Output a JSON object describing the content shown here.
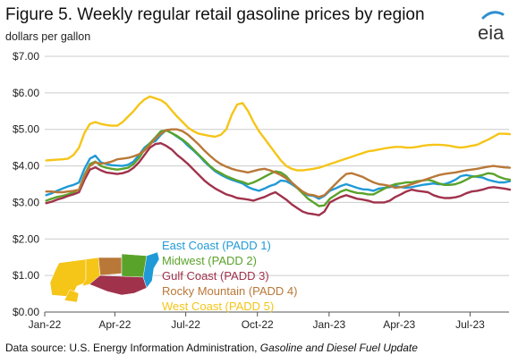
{
  "title": "Figure 5. Weekly regular retail gasoline prices by region",
  "units": "dollars per gallon",
  "source": {
    "prefix": "Data source: U.S. Energy Information Administration, ",
    "italic": "Gasoline and Diesel Fuel Update"
  },
  "logo": {
    "text": "eia",
    "accent": "#2f8fd0",
    "icon": "eia-logo-icon"
  },
  "chart_data": {
    "type": "line",
    "x_start": "2022-01-03",
    "x_step_days": 7,
    "x_tick_labels": [
      "Jan-22",
      "Apr-22",
      "Jul-22",
      "Oct-22",
      "Jan-23",
      "Apr-23",
      "Jul-23"
    ],
    "x_tick_dates": [
      "2022-01-01",
      "2022-04-01",
      "2022-07-01",
      "2022-10-01",
      "2023-01-01",
      "2023-04-01",
      "2023-07-01"
    ],
    "x_end_date": "2023-08-20",
    "ylim": [
      0,
      7
    ],
    "y_ticks": [
      "$0.00",
      "$1.00",
      "$2.00",
      "$3.00",
      "$4.00",
      "$5.00",
      "$6.00",
      "$7.00"
    ],
    "y_gridlines": true,
    "legend_position": "bottom-left",
    "series": [
      {
        "name": "East Coast (PADD 1)",
        "color": "#1f9ad6",
        "values": [
          3.2,
          3.25,
          3.32,
          3.38,
          3.44,
          3.48,
          3.55,
          3.92,
          4.2,
          4.28,
          4.1,
          4.05,
          4.02,
          4.01,
          4.0,
          4.03,
          4.12,
          4.3,
          4.5,
          4.62,
          4.68,
          4.85,
          4.98,
          4.9,
          4.8,
          4.7,
          4.55,
          4.42,
          4.28,
          4.12,
          3.98,
          3.85,
          3.76,
          3.68,
          3.62,
          3.57,
          3.52,
          3.42,
          3.36,
          3.32,
          3.38,
          3.45,
          3.5,
          3.6,
          3.58,
          3.5,
          3.4,
          3.28,
          3.2,
          3.18,
          3.1,
          3.18,
          3.32,
          3.38,
          3.45,
          3.5,
          3.45,
          3.4,
          3.36,
          3.35,
          3.32,
          3.38,
          3.4,
          3.42,
          3.45,
          3.42,
          3.4,
          3.42,
          3.45,
          3.48,
          3.5,
          3.52,
          3.5,
          3.5,
          3.55,
          3.62,
          3.72,
          3.75,
          3.72,
          3.7,
          3.68,
          3.62,
          3.58,
          3.55,
          3.55,
          3.58
        ]
      },
      {
        "name": "Midwest (PADD 2)",
        "color": "#5aa32b",
        "values": [
          3.05,
          3.1,
          3.15,
          3.18,
          3.22,
          3.28,
          3.35,
          3.75,
          4.05,
          4.12,
          4.0,
          3.95,
          3.92,
          3.9,
          3.92,
          3.95,
          4.05,
          4.22,
          4.45,
          4.62,
          4.78,
          4.95,
          4.97,
          4.9,
          4.82,
          4.72,
          4.6,
          4.45,
          4.3,
          4.15,
          4.0,
          3.88,
          3.8,
          3.72,
          3.66,
          3.6,
          3.56,
          3.5,
          3.55,
          3.62,
          3.7,
          3.78,
          3.85,
          3.82,
          3.72,
          3.55,
          3.4,
          3.25,
          3.1,
          3.0,
          2.9,
          2.92,
          3.1,
          3.2,
          3.3,
          3.35,
          3.3,
          3.26,
          3.25,
          3.22,
          3.22,
          3.3,
          3.38,
          3.45,
          3.5,
          3.52,
          3.55,
          3.55,
          3.58,
          3.6,
          3.62,
          3.58,
          3.52,
          3.48,
          3.48,
          3.5,
          3.55,
          3.62,
          3.7,
          3.72,
          3.75,
          3.8,
          3.78,
          3.7,
          3.65,
          3.62
        ]
      },
      {
        "name": "Gulf Coast (PADD 3)",
        "color": "#a0324c",
        "values": [
          2.98,
          3.02,
          3.08,
          3.12,
          3.18,
          3.22,
          3.28,
          3.62,
          3.9,
          3.96,
          3.88,
          3.82,
          3.8,
          3.78,
          3.8,
          3.85,
          3.95,
          4.1,
          4.3,
          4.5,
          4.6,
          4.62,
          4.55,
          4.45,
          4.3,
          4.18,
          4.05,
          3.9,
          3.75,
          3.6,
          3.48,
          3.38,
          3.3,
          3.22,
          3.18,
          3.12,
          3.1,
          3.08,
          3.05,
          3.1,
          3.15,
          3.22,
          3.28,
          3.18,
          3.08,
          2.95,
          2.85,
          2.75,
          2.7,
          2.68,
          2.65,
          2.75,
          3.0,
          3.08,
          3.15,
          3.2,
          3.15,
          3.1,
          3.08,
          3.05,
          3.0,
          3.0,
          3.0,
          3.05,
          3.15,
          3.22,
          3.3,
          3.35,
          3.32,
          3.3,
          3.28,
          3.2,
          3.15,
          3.12,
          3.12,
          3.14,
          3.18,
          3.25,
          3.3,
          3.32,
          3.35,
          3.4,
          3.42,
          3.4,
          3.38,
          3.35
        ]
      },
      {
        "name": "Rocky Mountain (PADD 4)",
        "color": "#b97838",
        "values": [
          3.3,
          3.3,
          3.28,
          3.28,
          3.3,
          3.32,
          3.35,
          3.72,
          4.0,
          4.1,
          4.06,
          4.08,
          4.12,
          4.18,
          4.2,
          4.22,
          4.26,
          4.32,
          4.42,
          4.58,
          4.75,
          4.88,
          4.98,
          5.0,
          5.0,
          4.95,
          4.85,
          4.72,
          4.58,
          4.42,
          4.28,
          4.15,
          4.05,
          3.98,
          3.92,
          3.88,
          3.85,
          3.82,
          3.86,
          3.9,
          3.92,
          3.88,
          3.82,
          3.75,
          3.66,
          3.55,
          3.42,
          3.3,
          3.22,
          3.2,
          3.15,
          3.2,
          3.35,
          3.5,
          3.65,
          3.78,
          3.8,
          3.75,
          3.7,
          3.62,
          3.55,
          3.5,
          3.48,
          3.45,
          3.4,
          3.42,
          3.45,
          3.5,
          3.55,
          3.6,
          3.65,
          3.7,
          3.75,
          3.78,
          3.8,
          3.82,
          3.85,
          3.88,
          3.9,
          3.92,
          3.95,
          3.98,
          4.0,
          3.98,
          3.96,
          3.95
        ]
      },
      {
        "name": "West Coast (PADD 5)",
        "color": "#f5c518",
        "values": [
          4.15,
          4.16,
          4.17,
          4.18,
          4.2,
          4.3,
          4.5,
          4.9,
          5.15,
          5.2,
          5.15,
          5.12,
          5.1,
          5.1,
          5.2,
          5.35,
          5.5,
          5.68,
          5.82,
          5.9,
          5.85,
          5.8,
          5.7,
          5.52,
          5.35,
          5.2,
          5.05,
          4.95,
          4.88,
          4.85,
          4.82,
          4.8,
          4.85,
          5.0,
          5.4,
          5.68,
          5.72,
          5.5,
          5.2,
          4.95,
          4.75,
          4.55,
          4.35,
          4.15,
          4.0,
          3.92,
          3.88,
          3.88,
          3.9,
          3.92,
          3.95,
          4.0,
          4.05,
          4.1,
          4.15,
          4.2,
          4.25,
          4.3,
          4.35,
          4.4,
          4.42,
          4.45,
          4.48,
          4.5,
          4.52,
          4.52,
          4.5,
          4.5,
          4.52,
          4.55,
          4.57,
          4.58,
          4.58,
          4.57,
          4.55,
          4.52,
          4.5,
          4.52,
          4.55,
          4.58,
          4.65,
          4.72,
          4.8,
          4.88,
          4.88,
          4.87
        ]
      }
    ]
  }
}
